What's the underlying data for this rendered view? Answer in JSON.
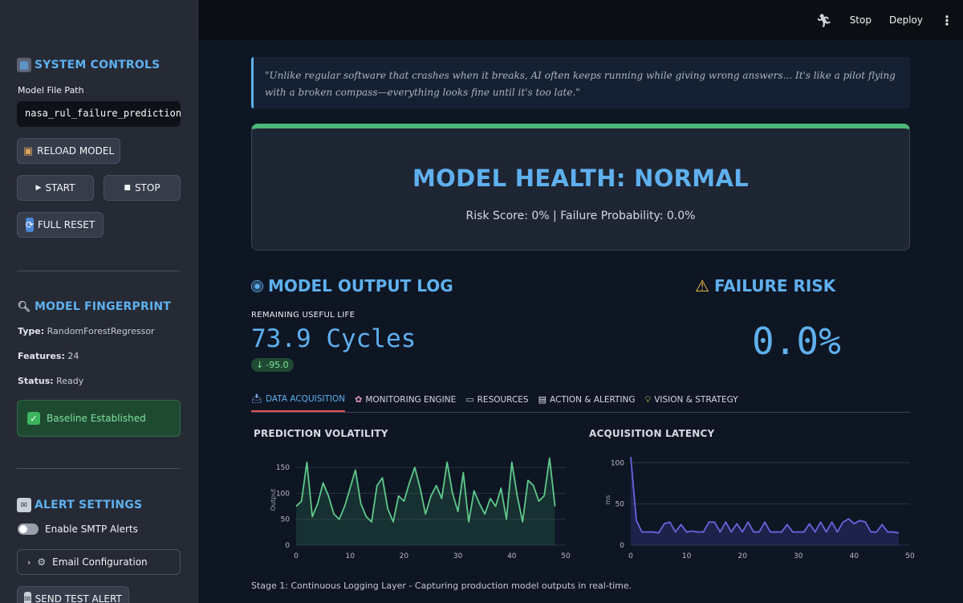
{
  "topbar": {
    "stop": "Stop",
    "deploy": "Deploy",
    "menu": "⋮"
  },
  "sidebar": {
    "system_controls": "SYSTEM CONTROLS",
    "model_file_label": "Model File Path",
    "model_file_value": "nasa_rul_failure_prediction_mod",
    "reload": "RELOAD MODEL",
    "start": "START",
    "stop": "STOP",
    "full_reset": "FULL RESET",
    "fingerprint": "MODEL FINGERPRINT",
    "type_label": "Type:",
    "type_value": "RandomForestRegressor",
    "features_label": "Features:",
    "features_value": "24",
    "status_label": "Status:",
    "status_value": "Ready",
    "baseline": "Baseline Established",
    "alert_settings": "ALERT SETTINGS",
    "smtp_toggle": "Enable SMTP Alerts",
    "email_config": "Email Configuration",
    "send_test": "SEND TEST ALERT"
  },
  "main": {
    "quote": "\"Unlike regular software that crashes when it breaks, AI often keeps running while giving wrong answers... It's like a pilot flying with a broken compass—everything looks fine until it's too late.\"",
    "health_title": "MODEL HEALTH: NORMAL",
    "health_sub": "Risk Score: 0% | Failure Probability: 0.0%",
    "output_log_title": "MODEL OUTPUT LOG",
    "rul_label": "REMAINING USEFUL LIFE",
    "rul_value": "73.9 Cycles",
    "rul_delta": "-95.0",
    "failure_risk_title": "FAILURE RISK",
    "failure_risk_value": "0.0%",
    "tabs": [
      {
        "label": "DATA ACQUISITION",
        "icon": "inbox-tray-icon"
      },
      {
        "label": "MONITORING ENGINE",
        "icon": "brain-icon"
      },
      {
        "label": "RESOURCES",
        "icon": "laptop-icon"
      },
      {
        "label": "ACTION & ALERTING",
        "icon": "memo-icon"
      },
      {
        "label": "VISION & STRATEGY",
        "icon": "lightbulb-icon"
      }
    ],
    "caption": "Stage 1: Continuous Logging Layer - Capturing production model outputs in real-time."
  },
  "colors": {
    "accent": "#5fb0ee",
    "success": "#4cb77a",
    "line_green": "#5fc98a",
    "line_purple": "#6b63e0"
  },
  "chart_data": [
    {
      "type": "area",
      "title": "PREDICTION VOLATILITY",
      "ylabel": "Output",
      "xlim": [
        0,
        50
      ],
      "ylim": [
        0,
        175
      ],
      "xticks": [
        0,
        10,
        20,
        30,
        40,
        50
      ],
      "yticks": [
        0,
        50,
        100,
        150
      ],
      "x": [
        0,
        1,
        2,
        3,
        4,
        5,
        6,
        7,
        8,
        9,
        10,
        11,
        12,
        13,
        14,
        15,
        16,
        17,
        18,
        19,
        20,
        21,
        22,
        23,
        24,
        25,
        26,
        27,
        28,
        29,
        30,
        31,
        32,
        33,
        34,
        35,
        36,
        37,
        38,
        39,
        40,
        41,
        42,
        43,
        44,
        45,
        46,
        47,
        48
      ],
      "values": [
        75,
        85,
        160,
        55,
        80,
        120,
        95,
        60,
        50,
        75,
        110,
        145,
        80,
        55,
        45,
        115,
        130,
        70,
        45,
        95,
        85,
        120,
        150,
        110,
        60,
        95,
        115,
        90,
        160,
        100,
        65,
        140,
        45,
        105,
        80,
        60,
        90,
        75,
        110,
        50,
        160,
        95,
        45,
        125,
        115,
        85,
        95,
        168,
        75
      ]
    },
    {
      "type": "area",
      "title": "ACQUISITION LATENCY",
      "ylabel": "ms",
      "xlim": [
        0,
        50
      ],
      "ylim": [
        0,
        110
      ],
      "xticks": [
        0,
        10,
        20,
        30,
        40,
        50
      ],
      "yticks": [
        0,
        50,
        100
      ],
      "x": [
        0,
        1,
        2,
        3,
        4,
        5,
        6,
        7,
        8,
        9,
        10,
        11,
        12,
        13,
        14,
        15,
        16,
        17,
        18,
        19,
        20,
        21,
        22,
        23,
        24,
        25,
        26,
        27,
        28,
        29,
        30,
        31,
        32,
        33,
        34,
        35,
        36,
        37,
        38,
        39,
        40,
        41,
        42,
        43,
        44,
        45,
        46,
        47,
        48
      ],
      "values": [
        107,
        30,
        16,
        16,
        16,
        15,
        26,
        28,
        16,
        25,
        16,
        17,
        16,
        16,
        28,
        28,
        16,
        28,
        16,
        26,
        16,
        28,
        16,
        16,
        28,
        16,
        16,
        16,
        25,
        16,
        16,
        16,
        26,
        16,
        28,
        16,
        28,
        16,
        28,
        32,
        26,
        30,
        28,
        16,
        16,
        25,
        16,
        16,
        15
      ]
    }
  ]
}
